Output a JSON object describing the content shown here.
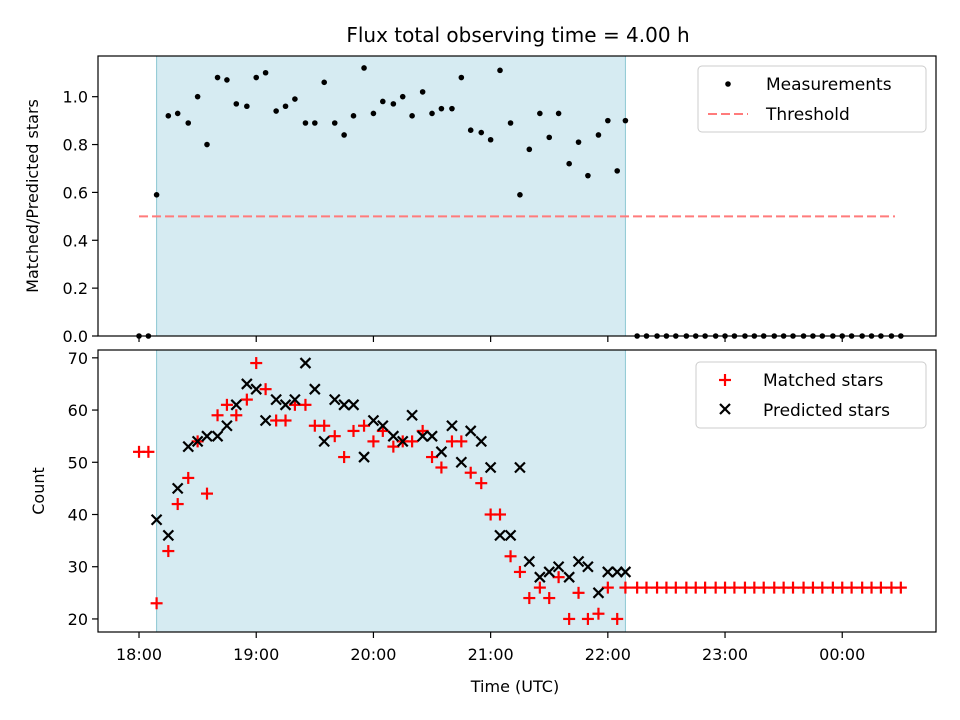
{
  "chart_data": [
    {
      "type": "scatter",
      "title": "Flux total observing time = 4.00 h",
      "xlabel": "",
      "ylabel": "Matched/Predicted stars",
      "xlim": [
        17.65,
        24.8
      ],
      "ylim": [
        0,
        1.17
      ],
      "yticks": [
        0.0,
        0.2,
        0.4,
        0.6,
        0.8,
        1.0
      ],
      "ytick_labels": [
        "0.0",
        "0.2",
        "0.4",
        "0.6",
        "0.8",
        "1.0"
      ],
      "shaded_interval": [
        18.15,
        22.15
      ],
      "legend": {
        "position": "top-right",
        "entries": [
          "Measurements",
          "Threshold"
        ]
      },
      "threshold": {
        "name": "Threshold",
        "y": 0.5,
        "x_range": [
          18.0,
          24.45
        ],
        "color": "#ff7b7b"
      },
      "series": [
        {
          "name": "Measurements",
          "color": "#000000",
          "points": [
            [
              18.0,
              0.0
            ],
            [
              18.08,
              0.0
            ],
            [
              18.15,
              0.59
            ],
            [
              18.25,
              0.92
            ],
            [
              18.33,
              0.93
            ],
            [
              18.42,
              0.89
            ],
            [
              18.5,
              1.0
            ],
            [
              18.58,
              0.8
            ],
            [
              18.67,
              1.08
            ],
            [
              18.75,
              1.07
            ],
            [
              18.83,
              0.97
            ],
            [
              18.92,
              0.96
            ],
            [
              19.0,
              1.08
            ],
            [
              19.08,
              1.1
            ],
            [
              19.17,
              0.94
            ],
            [
              19.25,
              0.96
            ],
            [
              19.33,
              0.99
            ],
            [
              19.42,
              0.89
            ],
            [
              19.5,
              0.89
            ],
            [
              19.58,
              1.06
            ],
            [
              19.67,
              0.89
            ],
            [
              19.75,
              0.84
            ],
            [
              19.83,
              0.92
            ],
            [
              19.92,
              1.12
            ],
            [
              20.0,
              0.93
            ],
            [
              20.08,
              0.98
            ],
            [
              20.17,
              0.97
            ],
            [
              20.25,
              1.0
            ],
            [
              20.33,
              0.92
            ],
            [
              20.42,
              1.02
            ],
            [
              20.5,
              0.93
            ],
            [
              20.58,
              0.95
            ],
            [
              20.67,
              0.95
            ],
            [
              20.75,
              1.08
            ],
            [
              20.83,
              0.86
            ],
            [
              20.92,
              0.85
            ],
            [
              21.0,
              0.82
            ],
            [
              21.08,
              1.11
            ],
            [
              21.17,
              0.89
            ],
            [
              21.25,
              0.59
            ],
            [
              21.33,
              0.78
            ],
            [
              21.42,
              0.93
            ],
            [
              21.5,
              0.83
            ],
            [
              21.58,
              0.93
            ],
            [
              21.67,
              0.72
            ],
            [
              21.75,
              0.81
            ],
            [
              21.83,
              0.67
            ],
            [
              21.92,
              0.84
            ],
            [
              22.0,
              0.9
            ],
            [
              22.08,
              0.69
            ],
            [
              22.15,
              0.9
            ],
            [
              22.25,
              0.0
            ],
            [
              22.33,
              0.0
            ],
            [
              22.42,
              0.0
            ],
            [
              22.5,
              0.0
            ],
            [
              22.58,
              0.0
            ],
            [
              22.67,
              0.0
            ],
            [
              22.75,
              0.0
            ],
            [
              22.83,
              0.0
            ],
            [
              22.92,
              0.0
            ],
            [
              23.0,
              0.0
            ],
            [
              23.08,
              0.0
            ],
            [
              23.17,
              0.0
            ],
            [
              23.25,
              0.0
            ],
            [
              23.33,
              0.0
            ],
            [
              23.42,
              0.0
            ],
            [
              23.5,
              0.0
            ],
            [
              23.58,
              0.0
            ],
            [
              23.67,
              0.0
            ],
            [
              23.75,
              0.0
            ],
            [
              23.83,
              0.0
            ],
            [
              23.92,
              0.0
            ],
            [
              24.0,
              0.0
            ],
            [
              24.08,
              0.0
            ],
            [
              24.17,
              0.0
            ],
            [
              24.25,
              0.0
            ],
            [
              24.33,
              0.0
            ],
            [
              24.42,
              0.0
            ],
            [
              24.5,
              0.0
            ]
          ]
        }
      ]
    },
    {
      "type": "scatter",
      "title": "",
      "xlabel": "Time (UTC)",
      "ylabel": "Count",
      "xlim": [
        17.65,
        24.8
      ],
      "ylim": [
        17.5,
        71.5
      ],
      "yticks": [
        20,
        30,
        40,
        50,
        60,
        70
      ],
      "ytick_labels": [
        "20",
        "30",
        "40",
        "50",
        "60",
        "70"
      ],
      "xticks": [
        18,
        19,
        20,
        21,
        22,
        23,
        24
      ],
      "xtick_labels": [
        "18:00",
        "19:00",
        "20:00",
        "21:00",
        "22:00",
        "23:00",
        "00:00"
      ],
      "shaded_interval": [
        18.15,
        22.15
      ],
      "legend": {
        "position": "top-right",
        "entries": [
          "Matched stars",
          "Predicted stars"
        ]
      },
      "series": [
        {
          "name": "Matched stars",
          "marker": "plus",
          "color": "#ff0000",
          "points": [
            [
              18.0,
              52
            ],
            [
              18.08,
              52
            ],
            [
              18.15,
              23
            ],
            [
              18.25,
              33
            ],
            [
              18.33,
              42
            ],
            [
              18.42,
              47
            ],
            [
              18.5,
              54
            ],
            [
              18.58,
              44
            ],
            [
              18.67,
              59
            ],
            [
              18.75,
              61
            ],
            [
              18.83,
              59
            ],
            [
              18.92,
              62
            ],
            [
              19.0,
              69
            ],
            [
              19.08,
              64
            ],
            [
              19.17,
              58
            ],
            [
              19.25,
              58
            ],
            [
              19.33,
              61
            ],
            [
              19.42,
              61
            ],
            [
              19.5,
              57
            ],
            [
              19.58,
              57
            ],
            [
              19.67,
              55
            ],
            [
              19.75,
              51
            ],
            [
              19.83,
              56
            ],
            [
              19.92,
              57
            ],
            [
              20.0,
              54
            ],
            [
              20.08,
              56
            ],
            [
              20.17,
              53
            ],
            [
              20.25,
              54
            ],
            [
              20.33,
              54
            ],
            [
              20.42,
              56
            ],
            [
              20.5,
              51
            ],
            [
              20.58,
              49
            ],
            [
              20.67,
              54
            ],
            [
              20.75,
              54
            ],
            [
              20.83,
              48
            ],
            [
              20.92,
              46
            ],
            [
              21.0,
              40
            ],
            [
              21.08,
              40
            ],
            [
              21.17,
              32
            ],
            [
              21.25,
              29
            ],
            [
              21.33,
              24
            ],
            [
              21.42,
              26
            ],
            [
              21.5,
              24
            ],
            [
              21.58,
              28
            ],
            [
              21.67,
              20
            ],
            [
              21.75,
              25
            ],
            [
              21.83,
              20
            ],
            [
              21.92,
              21
            ],
            [
              22.0,
              26
            ],
            [
              22.08,
              20
            ],
            [
              22.15,
              26
            ],
            [
              22.25,
              26
            ],
            [
              22.33,
              26
            ],
            [
              22.42,
              26
            ],
            [
              22.5,
              26
            ],
            [
              22.58,
              26
            ],
            [
              22.67,
              26
            ],
            [
              22.75,
              26
            ],
            [
              22.83,
              26
            ],
            [
              22.92,
              26
            ],
            [
              23.0,
              26
            ],
            [
              23.08,
              26
            ],
            [
              23.17,
              26
            ],
            [
              23.25,
              26
            ],
            [
              23.33,
              26
            ],
            [
              23.42,
              26
            ],
            [
              23.5,
              26
            ],
            [
              23.58,
              26
            ],
            [
              23.67,
              26
            ],
            [
              23.75,
              26
            ],
            [
              23.83,
              26
            ],
            [
              23.92,
              26
            ],
            [
              24.0,
              26
            ],
            [
              24.08,
              26
            ],
            [
              24.17,
              26
            ],
            [
              24.25,
              26
            ],
            [
              24.33,
              26
            ],
            [
              24.42,
              26
            ],
            [
              24.5,
              26
            ]
          ]
        },
        {
          "name": "Predicted stars",
          "marker": "x",
          "color": "#000000",
          "points": [
            [
              18.15,
              39
            ],
            [
              18.25,
              36
            ],
            [
              18.33,
              45
            ],
            [
              18.42,
              53
            ],
            [
              18.5,
              54
            ],
            [
              18.58,
              55
            ],
            [
              18.67,
              55
            ],
            [
              18.75,
              57
            ],
            [
              18.83,
              61
            ],
            [
              18.92,
              65
            ],
            [
              19.0,
              64
            ],
            [
              19.08,
              58
            ],
            [
              19.17,
              62
            ],
            [
              19.25,
              61
            ],
            [
              19.33,
              62
            ],
            [
              19.42,
              69
            ],
            [
              19.5,
              64
            ],
            [
              19.58,
              54
            ],
            [
              19.67,
              62
            ],
            [
              19.75,
              61
            ],
            [
              19.83,
              61
            ],
            [
              19.92,
              51
            ],
            [
              20.0,
              58
            ],
            [
              20.08,
              57
            ],
            [
              20.17,
              55
            ],
            [
              20.25,
              54
            ],
            [
              20.33,
              59
            ],
            [
              20.42,
              55
            ],
            [
              20.5,
              55
            ],
            [
              20.58,
              52
            ],
            [
              20.67,
              57
            ],
            [
              20.75,
              50
            ],
            [
              20.83,
              56
            ],
            [
              20.92,
              54
            ],
            [
              21.0,
              49
            ],
            [
              21.08,
              36
            ],
            [
              21.17,
              36
            ],
            [
              21.25,
              49
            ],
            [
              21.33,
              31
            ],
            [
              21.42,
              28
            ],
            [
              21.5,
              29
            ],
            [
              21.58,
              30
            ],
            [
              21.67,
              28
            ],
            [
              21.75,
              31
            ],
            [
              21.83,
              30
            ],
            [
              21.92,
              25
            ],
            [
              22.0,
              29
            ],
            [
              22.08,
              29
            ],
            [
              22.15,
              29
            ]
          ]
        }
      ]
    }
  ]
}
